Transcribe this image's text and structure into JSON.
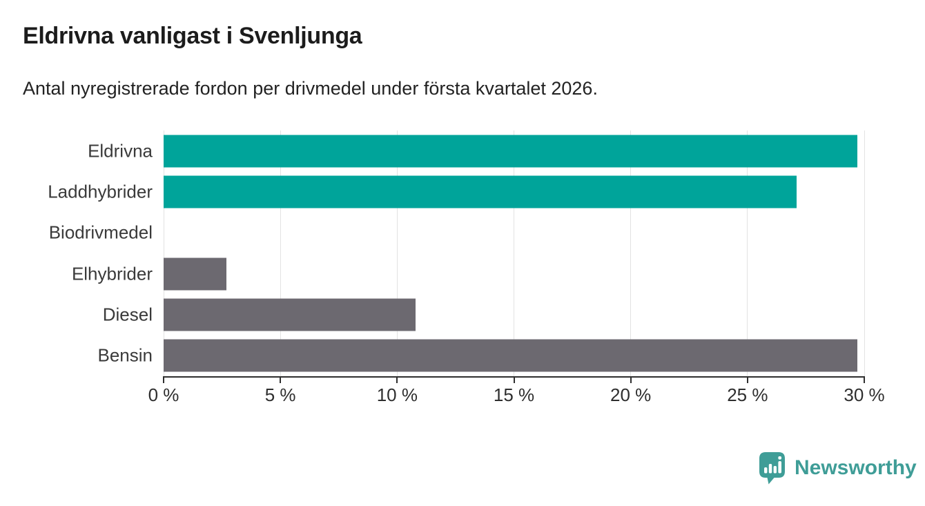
{
  "header": {
    "title": "Eldrivna vanligast i Svenljunga",
    "subtitle": "Antal nyregistrerade fordon per drivmedel under första kvartalet 2026."
  },
  "chart_data": {
    "type": "bar",
    "orientation": "horizontal",
    "title": "Eldrivna vanligast i Svenljunga",
    "subtitle": "Antal nyregistrerade fordon per drivmedel under första kvartalet 2026.",
    "categories": [
      "Eldrivna",
      "Laddhybrider",
      "Biodrivmedel",
      "Elhybrider",
      "Diesel",
      "Bensin"
    ],
    "values": [
      29.7,
      27.1,
      0,
      2.7,
      10.8,
      29.7
    ],
    "unit": "%",
    "bar_colors": [
      "#00a49a",
      "#00a49a",
      "#00a49a",
      "#6c6970",
      "#6c6970",
      "#6c6970"
    ],
    "xlabel": "",
    "ylabel": "",
    "xlim": [
      0,
      30
    ],
    "x_ticks": [
      {
        "value": 0,
        "label": "0 %"
      },
      {
        "value": 5,
        "label": "5 %"
      },
      {
        "value": 10,
        "label": "10 %"
      },
      {
        "value": 15,
        "label": "15 %"
      },
      {
        "value": 20,
        "label": "20 %"
      },
      {
        "value": 25,
        "label": "25 %"
      },
      {
        "value": 30,
        "label": "30 %"
      }
    ],
    "grid": "vertical-at-ticks",
    "legend": "none"
  },
  "colors": {
    "accent_teal": "#00a49a",
    "neutral_gray": "#6c6970",
    "gridline": "#e2e2e2",
    "axis": "#2e2e2e",
    "title_text": "#1c1c1c",
    "label_text": "#3a3a3a",
    "brand_teal": "#3f9d97"
  },
  "footer": {
    "brand": "Newsworthy",
    "logo_icon": "newsworthy-bubble-barchart-icon"
  }
}
